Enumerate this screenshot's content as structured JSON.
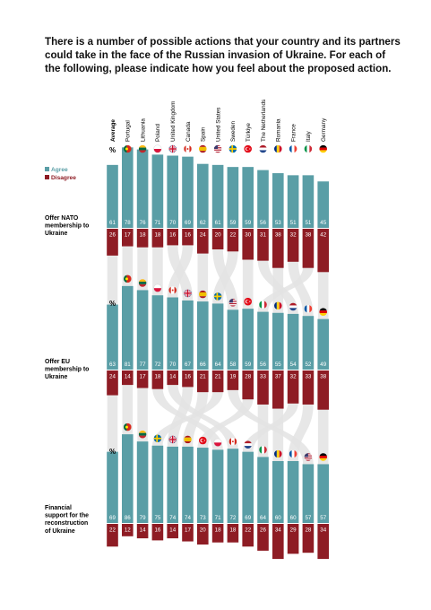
{
  "title": "There is a number of possible actions that your country and its partners could take in the face of the Russian invasion of Ukraine. For each of the following, please indicate how you feel about the proposed action.",
  "legend": {
    "agree": "Agree",
    "disagree": "Disagree"
  },
  "colors": {
    "agree": "#5a9ea6",
    "disagree": "#8e1c24",
    "ribbon": "#e3e3e3",
    "text_light": "#ffffff"
  },
  "percent_symbol": "%",
  "chart_data": [
    {
      "type": "bar",
      "question": "Offer NATO membership to Ukraine",
      "question_lines": [
        "Offer NATO",
        "membership to",
        "Ukraine"
      ],
      "categories": [
        "Average",
        "Portugal",
        "Lithuania",
        "Poland",
        "United Kingdom",
        "Canada",
        "Spain",
        "United States",
        "Sweden",
        "Türkiye",
        "The Netherlands",
        "Romania",
        "France",
        "Italy",
        "Germany"
      ],
      "series": [
        {
          "name": "Agree",
          "values": [
            61,
            78,
            76,
            71,
            70,
            69,
            62,
            61,
            59,
            59,
            56,
            53,
            51,
            51,
            45
          ]
        },
        {
          "name": "Disagree",
          "values": [
            26,
            17,
            18,
            18,
            16,
            16,
            24,
            20,
            22,
            30,
            31,
            38,
            32,
            38,
            42
          ]
        }
      ]
    },
    {
      "type": "bar",
      "question": "Offer EU membership to Ukraine",
      "question_lines": [
        "Offer EU",
        "membership to",
        "Ukraine"
      ],
      "categories": [
        "Average",
        "Portugal",
        "Lithuania",
        "Poland",
        "Canada",
        "United Kingdom",
        "Spain",
        "Sweden",
        "United States",
        "Türkiye",
        "Italy",
        "Romania",
        "The Netherlands",
        "France",
        "Germany"
      ],
      "series": [
        {
          "name": "Agree",
          "values": [
            63,
            81,
            77,
            72,
            70,
            67,
            66,
            64,
            58,
            59,
            56,
            55,
            54,
            52,
            49
          ]
        },
        {
          "name": "Disagree",
          "values": [
            24,
            14,
            17,
            18,
            14,
            16,
            21,
            21,
            19,
            28,
            33,
            37,
            32,
            33,
            38
          ]
        }
      ]
    },
    {
      "type": "bar",
      "question": "Financial support for the reconstruction of Ukraine",
      "question_lines": [
        "Financial",
        "support for the",
        "reconstruction",
        "of Ukraine"
      ],
      "categories": [
        "Average",
        "Portugal",
        "Lithuania",
        "Sweden",
        "United Kingdom",
        "Spain",
        "Türkiye",
        "Poland",
        "Canada",
        "The Netherlands",
        "Italy",
        "Romania",
        "France",
        "United States",
        "Germany"
      ],
      "series": [
        {
          "name": "Agree",
          "values": [
            69,
            86,
            79,
            75,
            74,
            74,
            73,
            71,
            72,
            69,
            64,
            60,
            60,
            57,
            57
          ]
        },
        {
          "name": "Disagree",
          "values": [
            22,
            12,
            14,
            16,
            14,
            17,
            20,
            18,
            18,
            22,
            26,
            34,
            29,
            28,
            34
          ]
        }
      ]
    }
  ],
  "flags": {
    "Portugal": {
      "colors": [
        "#046a38",
        "#da291c"
      ],
      "style": "v2"
    },
    "Lithuania": {
      "colors": [
        "#fdb913",
        "#006a44",
        "#c1272d"
      ],
      "style": "h3"
    },
    "Poland": {
      "colors": [
        "#ffffff",
        "#dc143c"
      ],
      "style": "h2"
    },
    "United Kingdom": {
      "colors": [
        "#012169",
        "#ffffff",
        "#c8102e"
      ],
      "style": "uk"
    },
    "Canada": {
      "colors": [
        "#d52b1e",
        "#ffffff",
        "#d52b1e"
      ],
      "style": "v3c"
    },
    "Spain": {
      "colors": [
        "#aa151b",
        "#f1bf00",
        "#aa151b"
      ],
      "style": "h3es"
    },
    "United States": {
      "colors": [
        "#b22234",
        "#ffffff",
        "#3c3b6e"
      ],
      "style": "us"
    },
    "Sweden": {
      "colors": [
        "#006aa7",
        "#fecc00"
      ],
      "style": "nordic"
    },
    "Türkiye": {
      "colors": [
        "#e30a17",
        "#ffffff"
      ],
      "style": "tr"
    },
    "The Netherlands": {
      "colors": [
        "#ae1c28",
        "#ffffff",
        "#21468b"
      ],
      "style": "h3"
    },
    "Romania": {
      "colors": [
        "#002b7f",
        "#fcd116",
        "#ce1126"
      ],
      "style": "v3"
    },
    "France": {
      "colors": [
        "#0055a4",
        "#ffffff",
        "#ef4135"
      ],
      "style": "v3"
    },
    "Italy": {
      "colors": [
        "#009246",
        "#ffffff",
        "#ce2b37"
      ],
      "style": "v3"
    },
    "Germany": {
      "colors": [
        "#000000",
        "#dd0000",
        "#ffce00"
      ],
      "style": "h3"
    }
  }
}
